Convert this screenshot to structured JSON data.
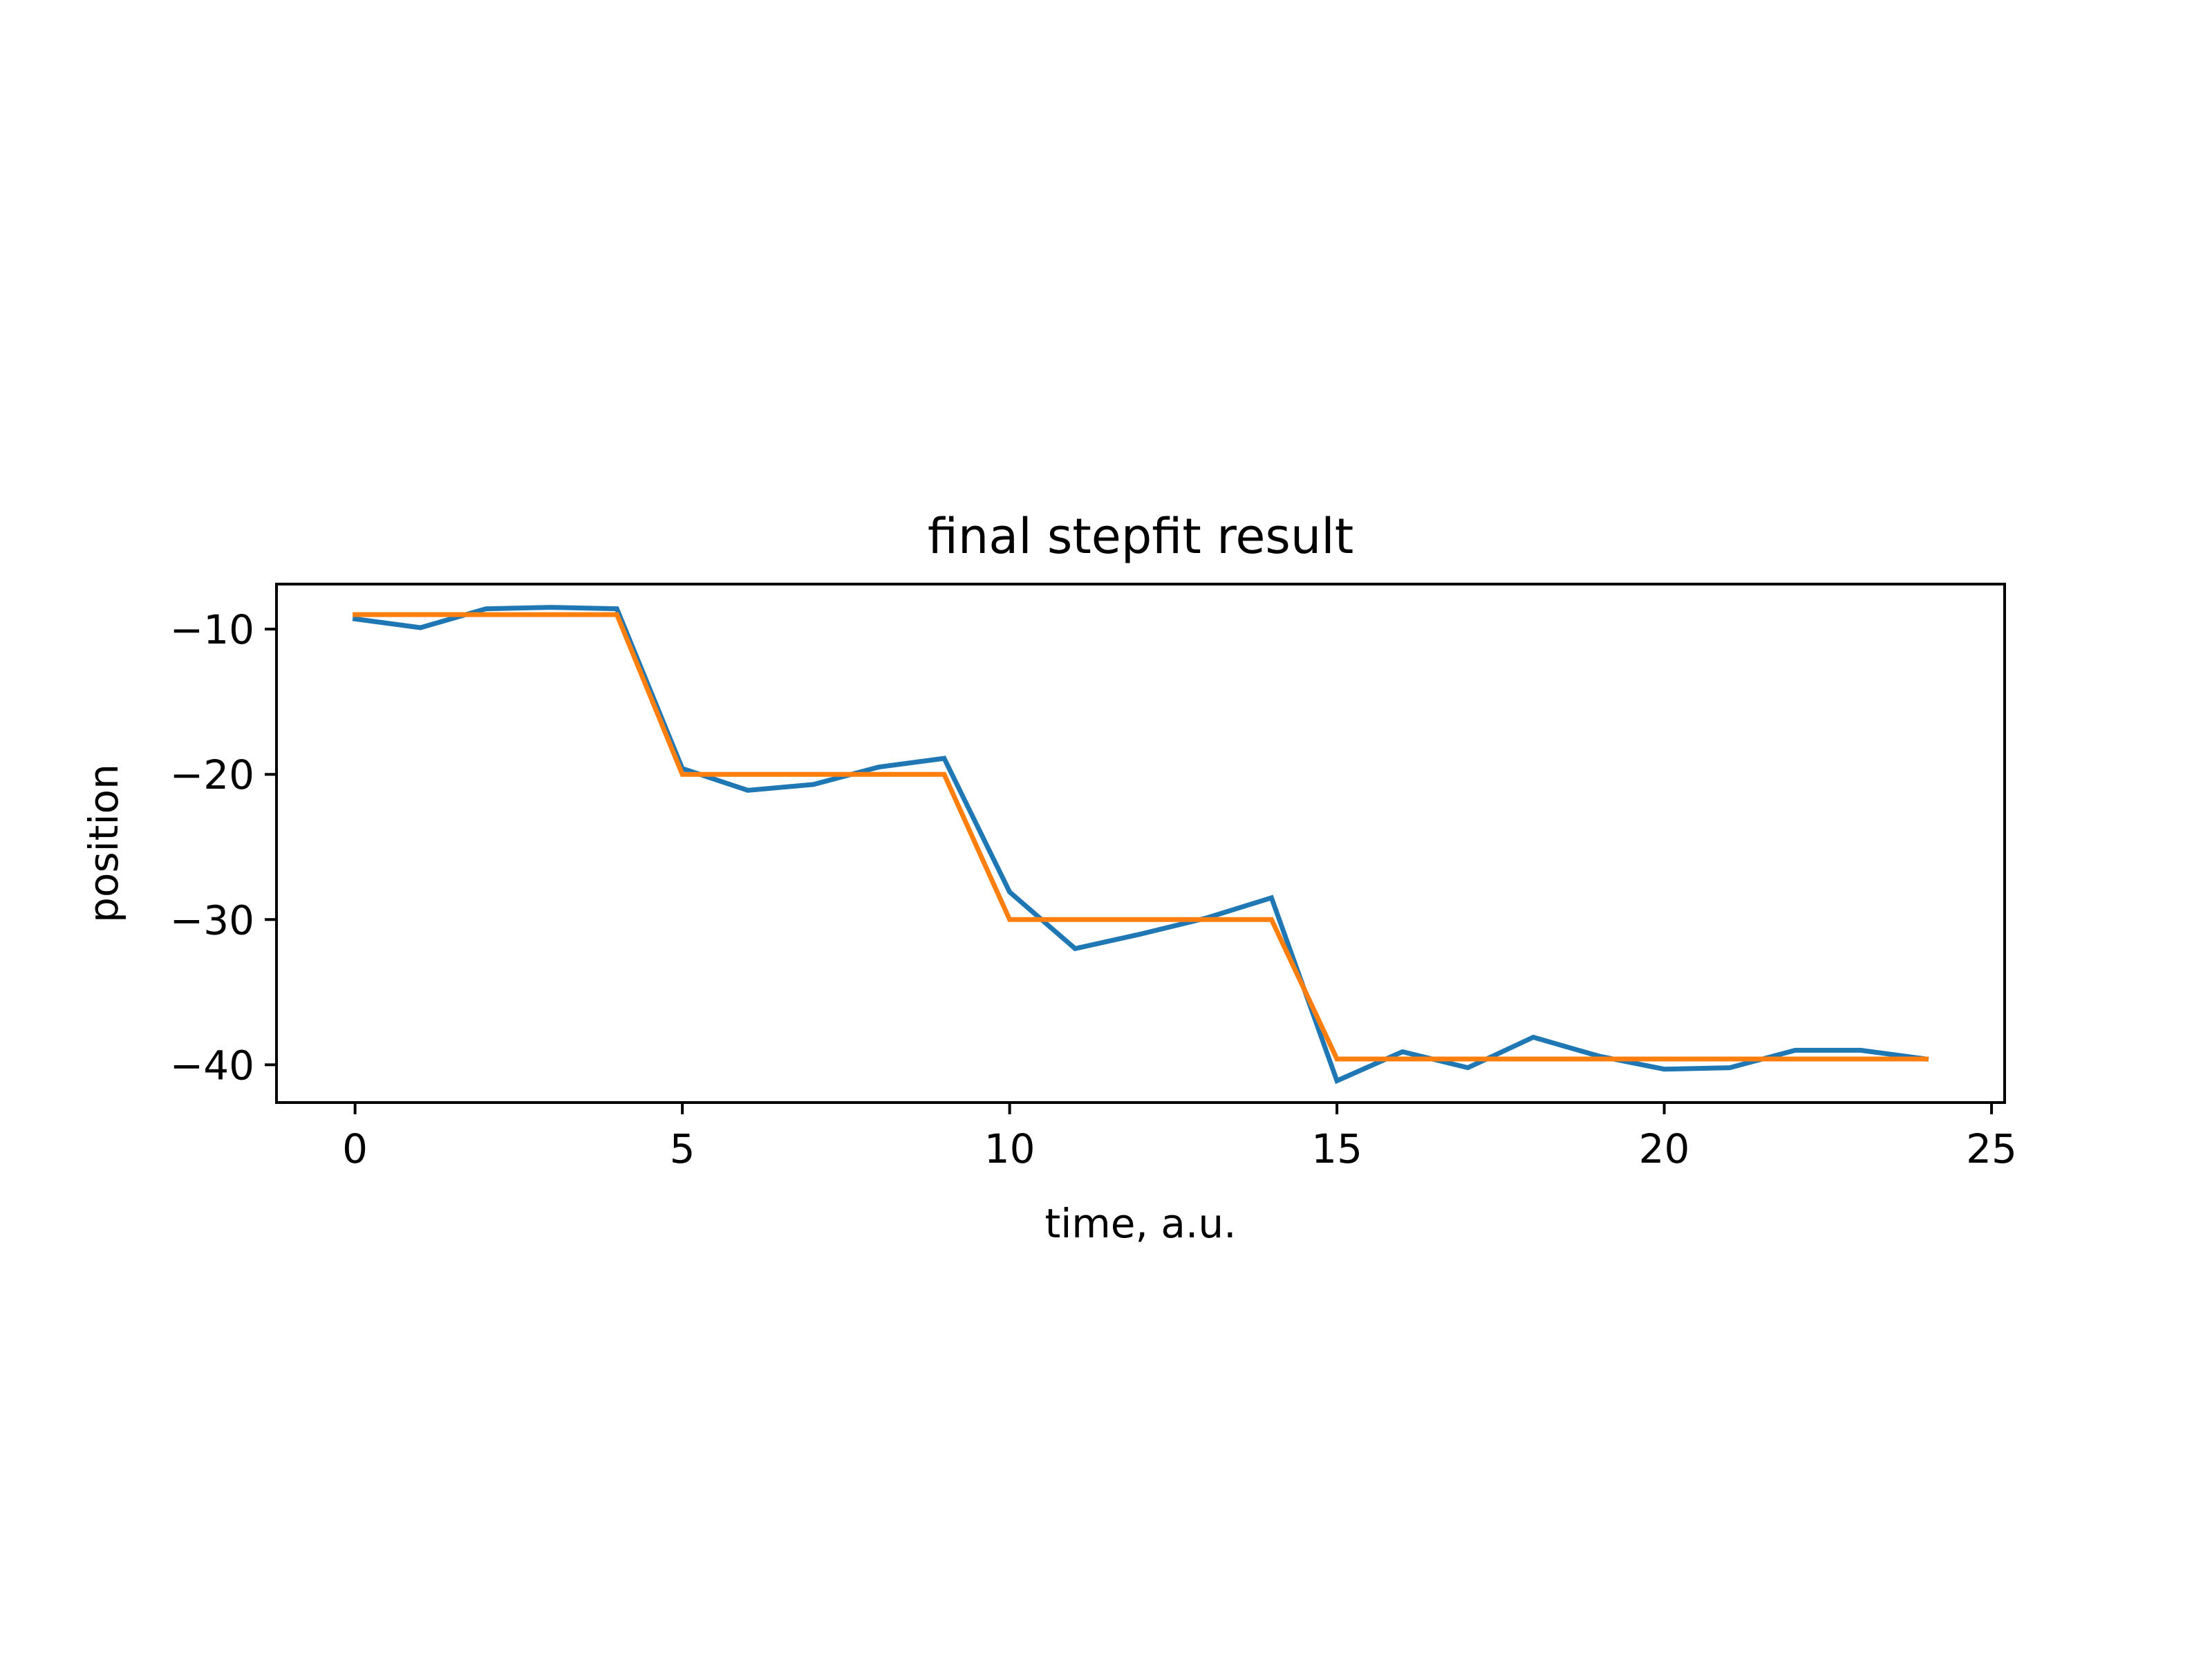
{
  "chart_data": {
    "type": "line",
    "title": "final stepfit result",
    "xlabel": "time, a.u.",
    "ylabel": "position",
    "xlim": [
      -1.2,
      25.2
    ],
    "ylim": [
      -42.6,
      -6.9
    ],
    "xticks": [
      0,
      5,
      10,
      15,
      20,
      25
    ],
    "yticks": [
      -10,
      -20,
      -30,
      -40
    ],
    "xtick_labels": [
      "0",
      "5",
      "10",
      "15",
      "20",
      "25"
    ],
    "ytick_labels": [
      "−10",
      "−20",
      "−30",
      "−40"
    ],
    "grid": false,
    "x": [
      0,
      1,
      2,
      3,
      4,
      5,
      6,
      7,
      8,
      9,
      10,
      11,
      12,
      13,
      14,
      15,
      16,
      17,
      18,
      19,
      20,
      21,
      22,
      23,
      24
    ],
    "series": [
      {
        "color": "#1f77b4",
        "values": [
          -9.3,
          -9.9,
          -8.6,
          -8.5,
          -8.6,
          -19.6,
          -21.1,
          -20.7,
          -19.5,
          -18.9,
          -28.1,
          -32.0,
          -31.0,
          -29.9,
          -28.5,
          -41.1,
          -39.1,
          -40.2,
          -38.1,
          -39.4,
          -40.3,
          -40.2,
          -39.0,
          -39.0,
          -39.6
        ]
      },
      {
        "color": "#ff7f0e",
        "values": [
          -9.0,
          -9.0,
          -9.0,
          -9.0,
          -9.0,
          -20.0,
          -20.0,
          -20.0,
          -20.0,
          -20.0,
          -30.0,
          -30.0,
          -30.0,
          -30.0,
          -30.0,
          -39.6,
          -39.6,
          -39.6,
          -39.6,
          -39.6,
          -39.6,
          -39.6,
          -39.6,
          -39.6,
          -39.6
        ]
      }
    ]
  }
}
